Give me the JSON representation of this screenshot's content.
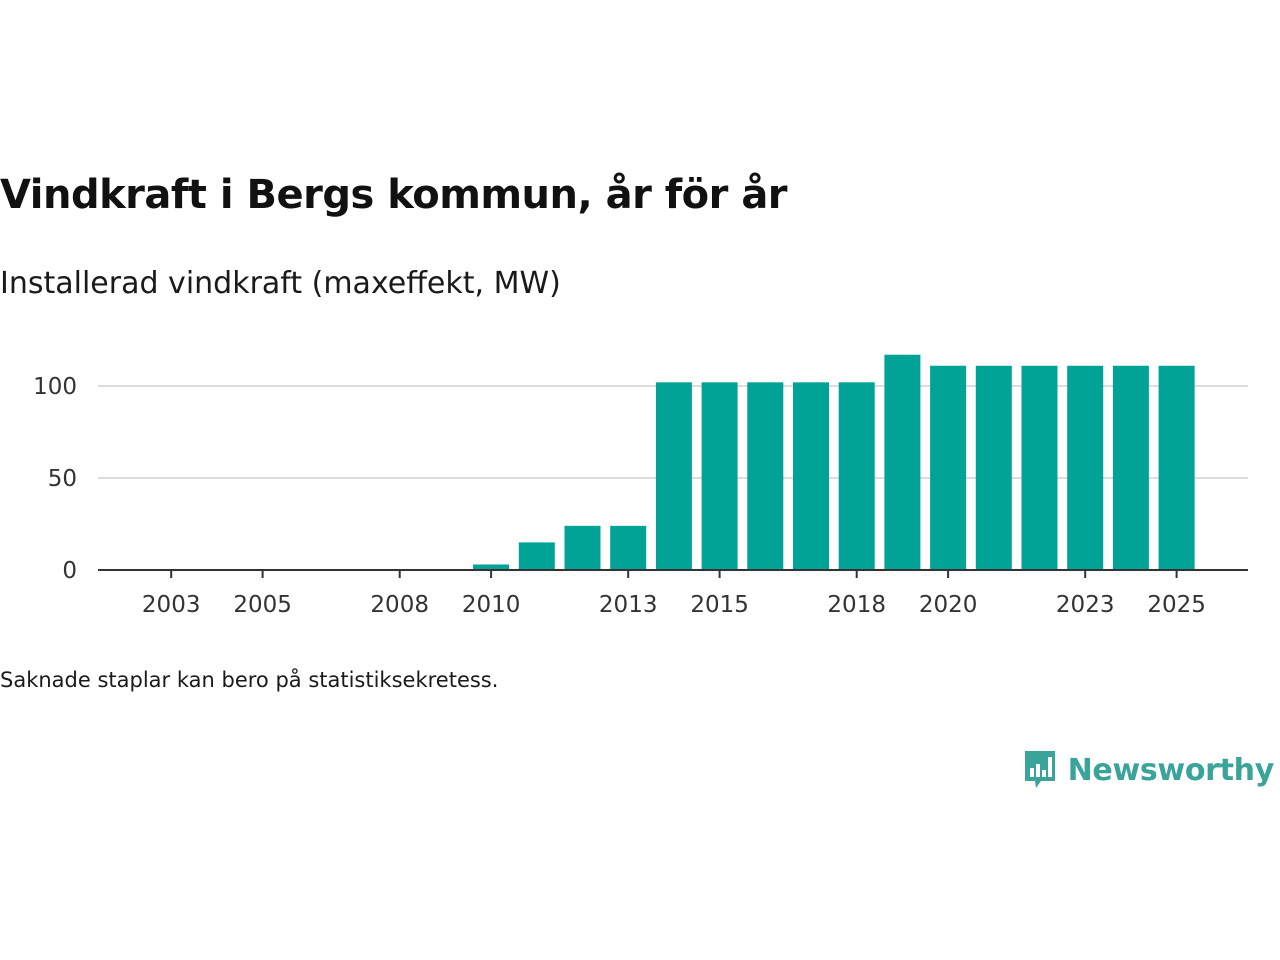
{
  "chart_data": {
    "type": "bar",
    "title": "Vindkraft i Bergs kommun, år för år",
    "subtitle": "Installerad vindkraft (maxeffekt, MW)",
    "xlabel": "",
    "ylabel": "",
    "categories": [
      "2002",
      "2003",
      "2004",
      "2005",
      "2006",
      "2007",
      "2008",
      "2009",
      "2010",
      "2011",
      "2012",
      "2013",
      "2014",
      "2015",
      "2016",
      "2017",
      "2018",
      "2019",
      "2020",
      "2021",
      "2022",
      "2023",
      "2024",
      "2025"
    ],
    "values": [
      0,
      0,
      0,
      0,
      0,
      0,
      0,
      0,
      3,
      15,
      24,
      24,
      102,
      102,
      102,
      102,
      102,
      117,
      111,
      111,
      111,
      111,
      111,
      111
    ],
    "x_tick_labels": [
      "2003",
      "2005",
      "2008",
      "2010",
      "2013",
      "2015",
      "2018",
      "2020",
      "2023",
      "2025"
    ],
    "y_ticks": [
      0,
      50,
      100
    ],
    "ylim": [
      0,
      125
    ],
    "grid": true,
    "bar_color": "#00a396",
    "gridline_color": "#dddddd",
    "axis_color": "#333333"
  },
  "footnote": "Saknade staplar kan bero på statistiksekretess.",
  "brand": {
    "name": "Newsworthy",
    "icon": "newsworthy-logo-icon",
    "color": "#3aa39a"
  }
}
